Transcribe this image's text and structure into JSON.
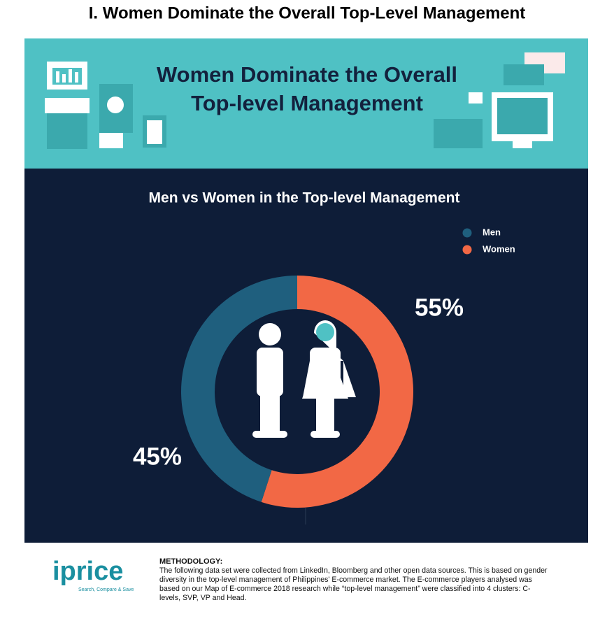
{
  "header": {
    "title": "I. Women Dominate the Overall Top-Level Management"
  },
  "banner": {
    "title_lines": [
      "Women Dominate the Overall",
      "Top-level Management"
    ]
  },
  "chart_data": {
    "type": "donut",
    "title": "Men vs Women in the Top-level Management",
    "categories": [
      "Men",
      "Women"
    ],
    "values": [
      45,
      55
    ],
    "value_labels": [
      "45%",
      "55%"
    ],
    "colors": [
      "#1f5f7e",
      "#f26845"
    ],
    "legend": "top-right"
  },
  "footer": {
    "logo": "iprice",
    "tagline": "Search, Compare & Save",
    "methodology_heading": "METHODOLOGY:",
    "methodology_text": "The following data set were collected from LinkedIn, Bloomberg and other open data sources. This is based on gender diversity in the top-level management of Philippines' E-commerce market. The E-commerce players analysed was based on our Map of E-commerce 2018 research while “top-level management” were classified into 4 clusters: C-levels, SVP, VP and Head."
  }
}
